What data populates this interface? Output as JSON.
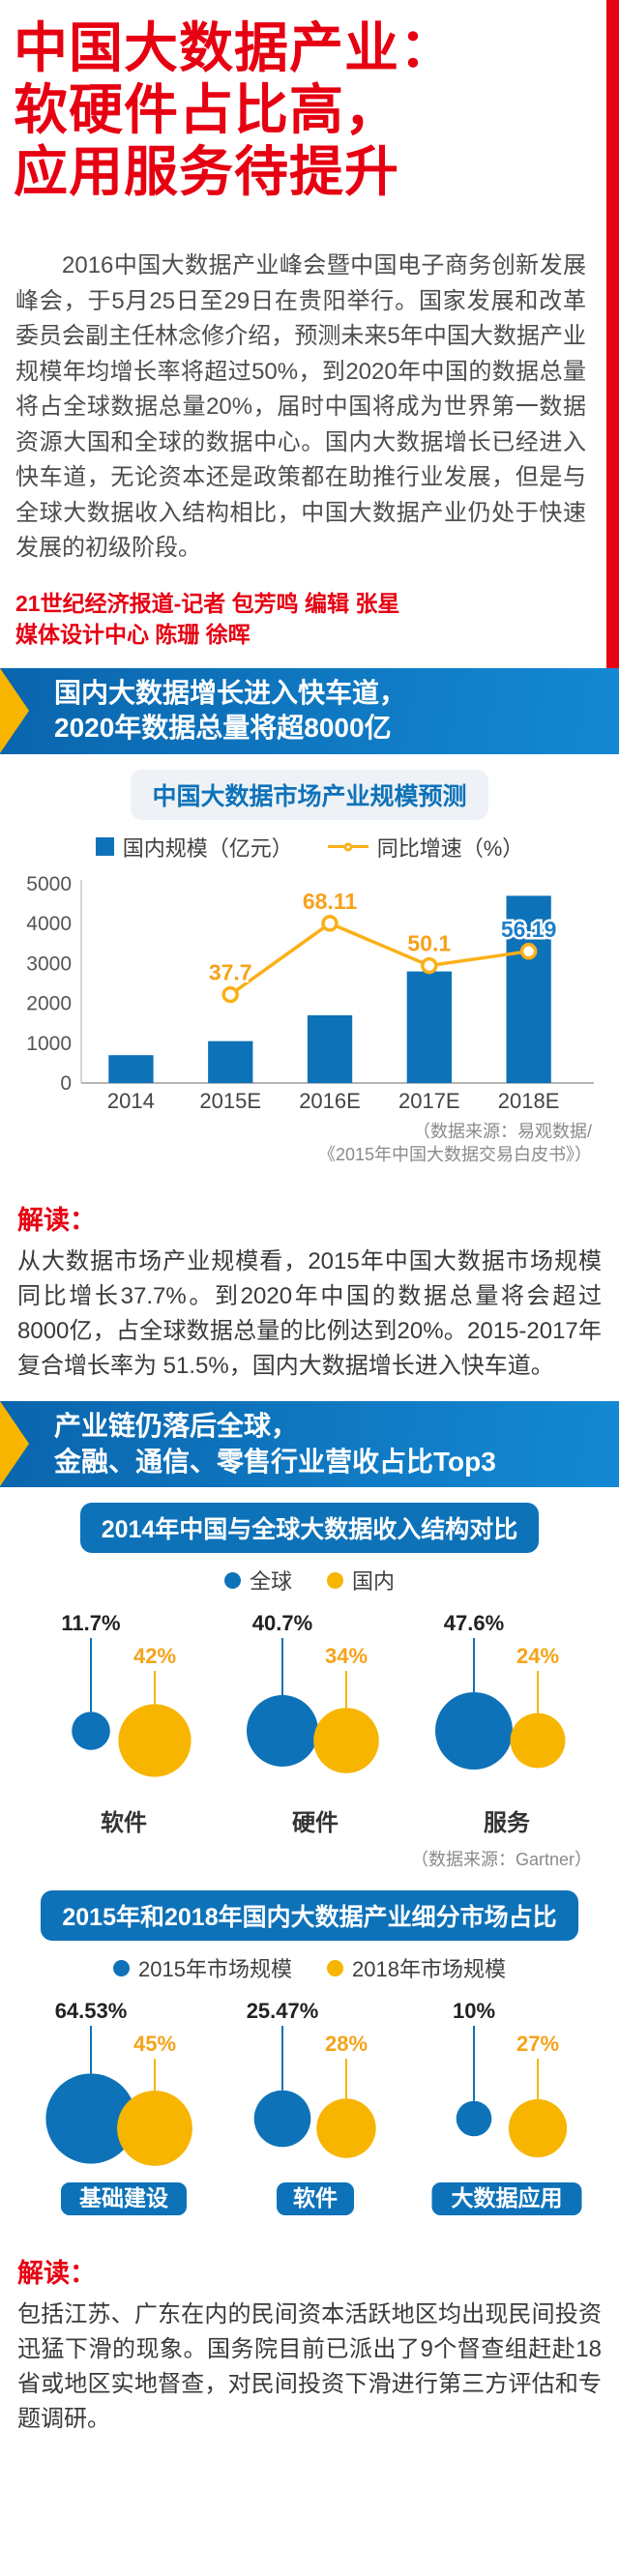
{
  "colors": {
    "brand_red": "#e60012",
    "brand_blue": "#0e72b8",
    "brand_yellow": "#f7b500",
    "body_text": "#4d4d4d"
  },
  "header": {
    "title_lines": [
      "中国大数据产业：",
      "软硬件占比高，",
      "应用服务待提升"
    ],
    "intro": "2016中国大数据产业峰会暨中国电子商务创新发展峰会，于5月25日至29日在贵阳举行。国家发展和改革委员会副主任林念修介绍，预测未来5年中国大数据产业规模年均增长率将超过50%，到2020年中国的数据总量将占全球数据总量20%，届时中国将成为世界第一数据资源大国和全球的数据中心。国内大数据增长已经进入快车道，无论资本还是政策都在助推行业发展，但是与全球大数据收入结构相比，中国大数据产业仍处于快速发展的初级阶段。",
    "credits": [
      "21世纪经济报道-记者 包芳鸣 编辑 张星",
      "媒体设计中心 陈珊 徐晖"
    ]
  },
  "banners": [
    {
      "lines": [
        "国内大数据增长进入快车道，",
        "2020年数据总量将超8000亿"
      ]
    },
    {
      "lines": [
        "产业链仍落后全球，",
        "金融、通信、零售行业营收占比Top3"
      ]
    }
  ],
  "interpretations": [
    {
      "heading": "解读：",
      "text": "从大数据市场产业规模看，2015年中国大数据市场规模同比增长37.7%。到2020年中国的数据总量将会超过8000亿，占全球数据总量的比例达到20%。2015-2017年复合增长率为 51.5%，国内大数据增长进入快车道。"
    },
    {
      "heading": "解读：",
      "text": "包括江苏、广东在内的民间资本活跃地区均出现民间投资迅猛下滑的现象。国务院目前已派出了9个督查组赶赴18省或地区实地督查，对民间投资下滑进行第三方评估和专题调研。"
    }
  ],
  "chart_data": [
    {
      "type": "bar",
      "title": "中国大数据市场产业规模预测",
      "categories": [
        "2014",
        "2015E",
        "2016E",
        "2017E",
        "2018E"
      ],
      "bar_series": {
        "name": "国内规模（亿元）",
        "values": [
          700,
          1050,
          1700,
          2800,
          4700
        ],
        "color": "#0e72b8"
      },
      "line_series": {
        "name": "同比增速（%）",
        "values": [
          null,
          37.7,
          68.11,
          50.1,
          56.19
        ],
        "labels": [
          "",
          "37.7",
          "68.11",
          "50.1",
          "56.19"
        ],
        "color": "#fbb018",
        "label_colors": [
          "",
          "#f7a11a",
          "#f7a11a",
          "#f7a11a",
          "#1e7ec8"
        ],
        "axis_max": 85
      },
      "ylim": [
        0,
        5000
      ],
      "yticks": [
        0,
        1000,
        2000,
        3000,
        4000,
        5000
      ],
      "xlabel": "",
      "ylabel": "",
      "source": "（数据来源：易观数据/\n《2015年中国大数据交易白皮书》）"
    },
    {
      "type": "bubble",
      "title": "2014年中国与全球大数据收入结构对比",
      "categories": [
        "软件",
        "硬件",
        "服务"
      ],
      "series": [
        {
          "name": "全球",
          "color": "#0e72b8",
          "label_color": "#222222",
          "values": [
            11.7,
            40.7,
            47.6
          ],
          "labels": [
            "11.7%",
            "40.7%",
            "47.6%"
          ]
        },
        {
          "name": "国内",
          "color": "#f7b500",
          "label_color": "#f5a31a",
          "values": [
            42,
            34,
            24
          ],
          "labels": [
            "42%",
            "34%",
            "24%"
          ]
        }
      ],
      "source": "（数据来源：Gartner）"
    },
    {
      "type": "bubble",
      "title": "2015年和2018年国内大数据产业细分市场占比",
      "categories": [
        "基础建设",
        "软件",
        "大数据应用"
      ],
      "series": [
        {
          "name": "2015年市场规模",
          "color": "#0e72b8",
          "label_color": "#222222",
          "values": [
            64.53,
            25.47,
            10
          ],
          "labels": [
            "64.53%",
            "25.47%",
            "10%"
          ]
        },
        {
          "name": "2018年市场规模",
          "color": "#f7b500",
          "label_color": "#f5a31a",
          "values": [
            45,
            28,
            27
          ],
          "labels": [
            "45%",
            "28%",
            "27%"
          ]
        }
      ]
    }
  ]
}
